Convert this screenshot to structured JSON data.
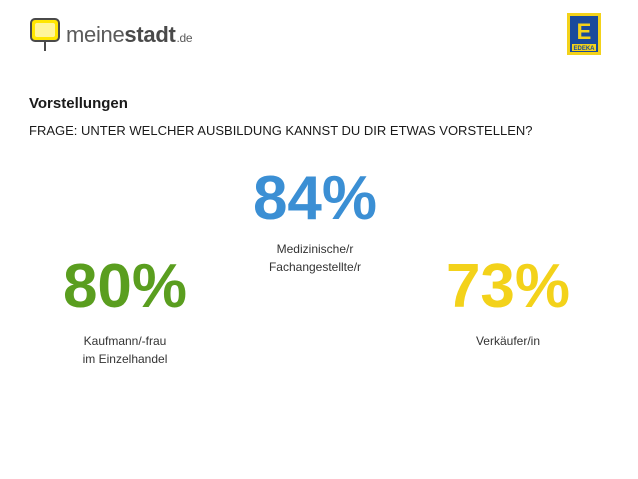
{
  "header": {
    "logo_left": {
      "text_light": "meine",
      "text_bold": "stadt",
      "text_tld": ".de",
      "icon": "sign-icon"
    },
    "logo_right": {
      "letter": "E",
      "text": "EDEKA",
      "colors": {
        "primary": "#1a4a9c",
        "secondary": "#f3d21a"
      }
    }
  },
  "section_title": "Vorstellungen",
  "question": "FRAGE: UNTER WELCHER AUSBILDUNG KANNST DU DIR ETWAS VORSTELLEN?",
  "stats": {
    "center": {
      "value": "84%",
      "label": "Medizinische/r\nFachangestellte/r",
      "color": "#3b8fd4"
    },
    "left": {
      "value": "80%",
      "label": "Kaufmann/-frau\nim Einzelhandel",
      "color": "#5a9e1f"
    },
    "right": {
      "value": "73%",
      "label": "Verkäufer/in",
      "color": "#f3d21a"
    }
  }
}
